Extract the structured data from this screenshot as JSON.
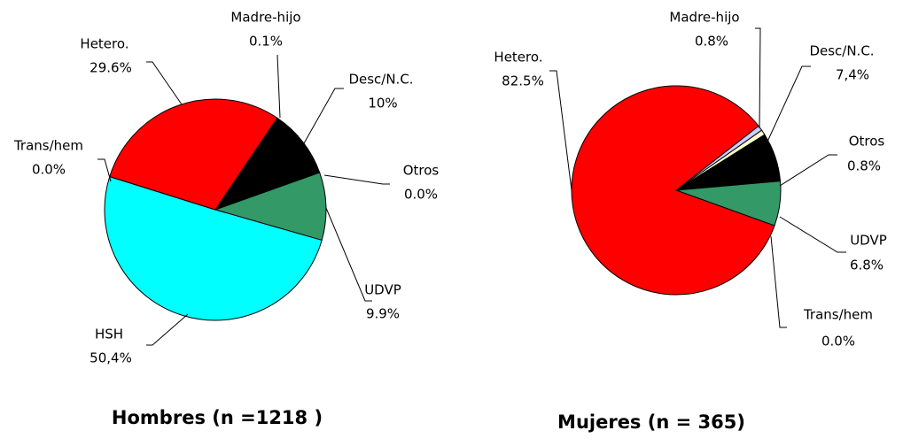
{
  "chart_data": [
    {
      "type": "pie",
      "title": "Hombres (n =1218 )",
      "categories": [
        "Madre-hijo",
        "Desc/N.C.",
        "Otros",
        "UDVP",
        "HSH",
        "Trans/hem",
        "Hetero."
      ],
      "values": [
        0.1,
        10,
        0.0,
        9.9,
        50.4,
        0.0,
        29.6
      ],
      "value_labels": [
        "0.1%",
        "10%",
        "0.0%",
        "9.9%",
        "50,4%",
        "0.0%",
        "29.6%"
      ],
      "colors": [
        "#ccccff",
        "#000000",
        "#ffffcc",
        "#339966",
        "#00ffff",
        "#993366",
        "#ff0000"
      ]
    },
    {
      "type": "pie",
      "title": "Mujeres (n = 365)",
      "categories": [
        "Madre-hijo",
        "Otros",
        "Desc/N.C.",
        "UDVP",
        "Trans/hem",
        "Hetero."
      ],
      "values": [
        0.8,
        0.8,
        7.4,
        6.8,
        0.0,
        82.5
      ],
      "value_labels": [
        "0.8%",
        "0.8%",
        "7,4%",
        "6.8%",
        "0.0%",
        "82.5%"
      ],
      "colors": [
        "#ccccff",
        "#ffffcc",
        "#000000",
        "#339966",
        "#993366",
        "#ff0000"
      ]
    }
  ]
}
